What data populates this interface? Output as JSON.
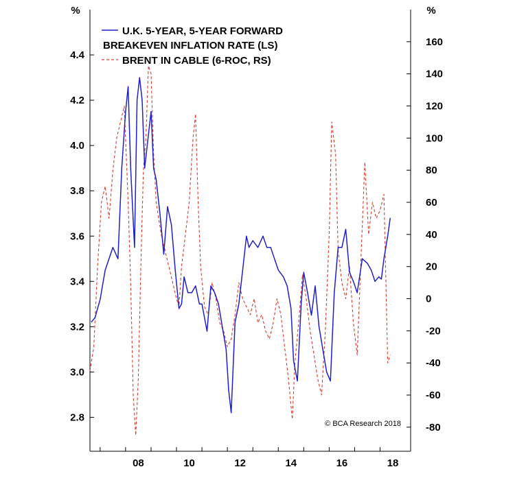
{
  "chart_data": {
    "type": "line",
    "left_axis": {
      "unit_label": "%",
      "min": 2.65,
      "max": 4.6,
      "ticks": [
        "2.8",
        "3.0",
        "3.2",
        "3.4",
        "3.6",
        "3.8",
        "4.0",
        "4.2",
        "4.4"
      ]
    },
    "right_axis": {
      "unit_label": "%",
      "min": -95,
      "max": 180,
      "ticks": [
        "-80",
        "-60",
        "-40",
        "-20",
        "0",
        "20",
        "40",
        "60",
        "80",
        "100",
        "120",
        "140",
        "160"
      ]
    },
    "x_axis": {
      "min": 2006.6,
      "max": 2019.2,
      "ticks": [
        {
          "v": 2008,
          "label": "08"
        },
        {
          "v": 2010,
          "label": "10"
        },
        {
          "v": 2012,
          "label": "12"
        },
        {
          "v": 2014,
          "label": "14"
        },
        {
          "v": 2016,
          "label": "16"
        },
        {
          "v": 2018,
          "label": "18"
        }
      ]
    },
    "legend": [
      {
        "label": "U.K. 5-YEAR, 5-YEAR FORWARD",
        "style": "solid",
        "color": "#1f1fc8"
      },
      {
        "label": "BREAKEVEN INFLATION RATE (LS)",
        "style": "none",
        "color": ""
      },
      {
        "label": "BRENT IN CABLE (6-ROC, RS)",
        "style": "dashed",
        "color": "#d93a2b"
      }
    ],
    "credit": "© BCA Research 2018",
    "series": [
      {
        "name": "U.K. 5-Year, 5-Year Forward Breakeven Inflation Rate",
        "axis": "left",
        "color": "#1f1fc8",
        "x": [
          2006.65,
          2006.8,
          2007.0,
          2007.2,
          2007.35,
          2007.5,
          2007.7,
          2007.85,
          2008.0,
          2008.1,
          2008.2,
          2008.35,
          2008.45,
          2008.55,
          2008.65,
          2008.75,
          2008.85,
          2009.0,
          2009.1,
          2009.2,
          2009.35,
          2009.5,
          2009.65,
          2009.8,
          2009.95,
          2010.1,
          2010.2,
          2010.3,
          2010.45,
          2010.6,
          2010.75,
          2010.9,
          2011.0,
          2011.2,
          2011.35,
          2011.5,
          2011.65,
          2011.8,
          2011.95,
          2012.05,
          2012.15,
          2012.3,
          2012.45,
          2012.6,
          2012.75,
          2012.85,
          2013.0,
          2013.2,
          2013.4,
          2013.55,
          2013.7,
          2013.85,
          2014.0,
          2014.2,
          2014.35,
          2014.5,
          2014.6,
          2014.75,
          2014.9,
          2015.0,
          2015.15,
          2015.3,
          2015.45,
          2015.6,
          2015.75,
          2015.9,
          2016.05,
          2016.2,
          2016.35,
          2016.5,
          2016.65,
          2016.8,
          2016.95,
          2017.1,
          2017.3,
          2017.5,
          2017.65,
          2017.8,
          2017.95,
          2018.05,
          2018.15,
          2018.3,
          2018.4
        ],
        "y": [
          3.22,
          3.24,
          3.32,
          3.45,
          3.5,
          3.55,
          3.5,
          3.9,
          4.15,
          4.26,
          3.9,
          3.55,
          4.2,
          4.3,
          4.2,
          3.9,
          4.0,
          4.15,
          3.9,
          3.85,
          3.7,
          3.52,
          3.73,
          3.65,
          3.45,
          3.28,
          3.3,
          3.42,
          3.35,
          3.35,
          3.38,
          3.3,
          3.3,
          3.18,
          3.38,
          3.35,
          3.3,
          3.2,
          3.1,
          2.92,
          2.82,
          3.22,
          3.3,
          3.45,
          3.6,
          3.55,
          3.58,
          3.55,
          3.6,
          3.55,
          3.55,
          3.5,
          3.45,
          3.42,
          3.38,
          3.28,
          3.05,
          2.96,
          3.3,
          3.44,
          3.35,
          3.25,
          3.38,
          3.2,
          3.1,
          3.0,
          2.96,
          3.35,
          3.55,
          3.55,
          3.63,
          3.44,
          3.4,
          3.35,
          3.5,
          3.48,
          3.45,
          3.4,
          3.42,
          3.41,
          3.5,
          3.6,
          3.68
        ]
      },
      {
        "name": "Brent in Cable (6-ROC)",
        "axis": "right",
        "color": "#d93a2b",
        "x": [
          2006.6,
          2006.75,
          2006.9,
          2007.05,
          2007.2,
          2007.35,
          2007.5,
          2007.65,
          2007.8,
          2007.95,
          2008.1,
          2008.2,
          2008.3,
          2008.4,
          2008.5,
          2008.6,
          2008.7,
          2008.8,
          2008.9,
          2009.0,
          2009.1,
          2009.2,
          2009.3,
          2009.4,
          2009.55,
          2009.7,
          2009.85,
          2010.0,
          2010.1,
          2010.2,
          2010.35,
          2010.5,
          2010.65,
          2010.75,
          2010.85,
          2010.95,
          2011.1,
          2011.25,
          2011.4,
          2011.55,
          2011.7,
          2011.85,
          2012.0,
          2012.15,
          2012.3,
          2012.45,
          2012.6,
          2012.75,
          2012.9,
          2013.05,
          2013.2,
          2013.35,
          2013.5,
          2013.65,
          2013.8,
          2013.95,
          2014.1,
          2014.25,
          2014.4,
          2014.55,
          2014.65,
          2014.8,
          2014.95,
          2015.1,
          2015.25,
          2015.4,
          2015.55,
          2015.7,
          2015.85,
          2016.0,
          2016.1,
          2016.25,
          2016.35,
          2016.5,
          2016.65,
          2016.8,
          2016.95,
          2017.1,
          2017.25,
          2017.4,
          2017.55,
          2017.7,
          2017.85,
          2018.0,
          2018.15,
          2018.3,
          2018.4
        ],
        "y": [
          -45,
          -30,
          20,
          60,
          70,
          50,
          80,
          100,
          110,
          120,
          60,
          10,
          -60,
          -85,
          -50,
          20,
          80,
          100,
          145,
          140,
          90,
          60,
          50,
          40,
          30,
          20,
          10,
          0,
          -5,
          20,
          40,
          60,
          100,
          115,
          60,
          20,
          -5,
          -10,
          10,
          0,
          -15,
          -20,
          -30,
          -25,
          -10,
          10,
          0,
          -5,
          -10,
          0,
          -15,
          -10,
          -20,
          -25,
          -15,
          0,
          -10,
          -30,
          -50,
          -75,
          -40,
          -15,
          15,
          0,
          -20,
          -35,
          -50,
          -60,
          -20,
          40,
          110,
          90,
          30,
          10,
          0,
          20,
          -15,
          -35,
          25,
          85,
          40,
          60,
          50,
          55,
          65,
          -40,
          -35
        ]
      }
    ]
  }
}
